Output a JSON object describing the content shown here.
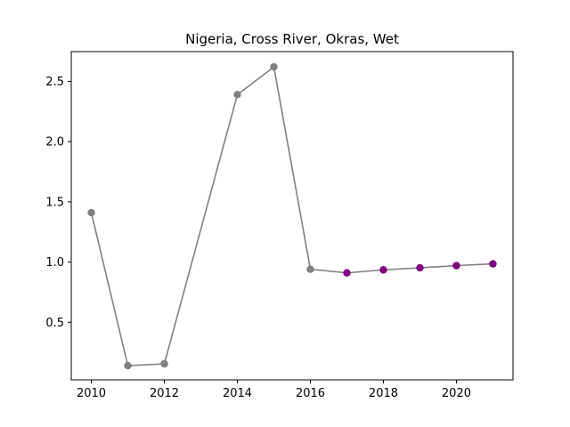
{
  "chart_data": {
    "type": "line",
    "title": "Nigeria, Cross River, Okras, Wet",
    "xlabel": "",
    "ylabel": "",
    "xlim": [
      2009.45,
      2021.55
    ],
    "ylim": [
      0.022,
      2.747
    ],
    "x_ticks": [
      2010,
      2012,
      2014,
      2016,
      2018,
      2020
    ],
    "x_tick_labels": [
      "2010",
      "2012",
      "2014",
      "2016",
      "2018",
      "2020"
    ],
    "y_ticks": [
      0.5,
      1.0,
      1.5,
      2.0,
      2.5
    ],
    "y_tick_labels": [
      "0.5",
      "1.0",
      "1.5",
      "2.0",
      "2.5"
    ],
    "grid": false,
    "line_color": "#808080",
    "series": [
      {
        "x": [
          2010,
          2011,
          2012,
          2014,
          2015,
          2016,
          2017,
          2018,
          2019,
          2020,
          2021
        ],
        "y": [
          1.41,
          0.14,
          0.155,
          2.39,
          2.62,
          0.94,
          0.91,
          0.935,
          0.952,
          0.97,
          0.985
        ],
        "marker_colors": [
          "#808080",
          "#808080",
          "#808080",
          "#808080",
          "#808080",
          "#808080",
          "#800080",
          "#800080",
          "#800080",
          "#800080",
          "#800080"
        ]
      }
    ]
  }
}
